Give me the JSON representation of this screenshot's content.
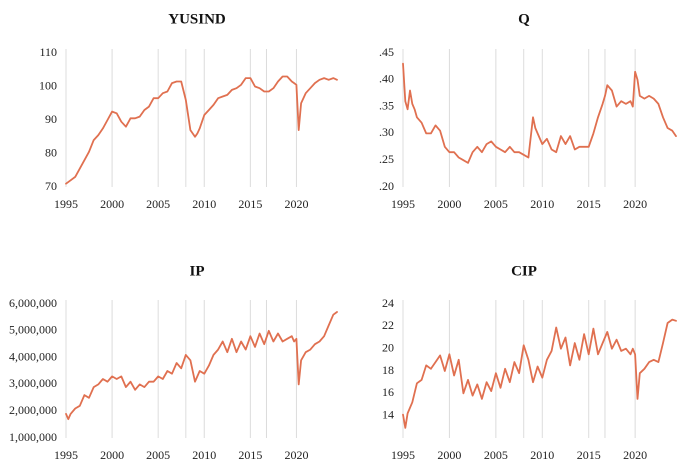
{
  "figure": {
    "line_color": "#E07050",
    "grid_color": "#dcdcdc"
  },
  "chart_data": [
    {
      "type": "line",
      "title": "YUSIND",
      "xlabel": "",
      "ylabel": "",
      "xlim": [
        1995,
        2024.4
      ],
      "ylim": [
        70,
        110
      ],
      "xticks": [
        1995,
        2000,
        2005,
        2010,
        2015,
        2020
      ],
      "xtick_labels": [
        "1995",
        "2000",
        "2005",
        "2010",
        "2015",
        "2020"
      ],
      "yticks": [
        70,
        80,
        90,
        100,
        110
      ],
      "ytick_labels": [
        "70",
        "80",
        "90",
        "100",
        "110"
      ],
      "grid": "vertical",
      "series": [
        {
          "name": "YUSIND",
          "x": [
            1995.0,
            1995.5,
            1996.0,
            1996.5,
            1997.0,
            1997.5,
            1998.0,
            1998.5,
            1999.0,
            1999.5,
            2000.0,
            2000.5,
            2001.0,
            2001.5,
            2002.0,
            2002.5,
            2003.0,
            2003.5,
            2004.0,
            2004.5,
            2005.0,
            2005.5,
            2006.0,
            2006.5,
            2007.0,
            2007.5,
            2008.0,
            2008.5,
            2009.0,
            2009.25,
            2009.5,
            2010.0,
            2010.5,
            2011.0,
            2011.5,
            2012.0,
            2012.5,
            2013.0,
            2013.5,
            2014.0,
            2014.5,
            2015.0,
            2015.5,
            2016.0,
            2016.5,
            2017.0,
            2017.5,
            2018.0,
            2018.5,
            2019.0,
            2019.5,
            2019.75,
            2020.0,
            2020.25,
            2020.5,
            2021.0,
            2021.5,
            2022.0,
            2022.5,
            2023.0,
            2023.5,
            2024.0,
            2024.4
          ],
          "values": [
            71.0,
            72.0,
            73.0,
            75.5,
            78.0,
            80.5,
            84.0,
            85.5,
            87.5,
            90.0,
            92.5,
            92.0,
            89.5,
            88.0,
            90.5,
            90.5,
            91.0,
            93.0,
            94.0,
            96.5,
            96.5,
            98.0,
            98.5,
            101.0,
            101.5,
            101.5,
            96.0,
            87.0,
            85.0,
            86.0,
            87.5,
            91.5,
            93.0,
            94.5,
            96.5,
            97.0,
            97.5,
            99.0,
            99.5,
            100.5,
            102.5,
            102.5,
            100.0,
            99.5,
            98.5,
            98.5,
            99.5,
            101.5,
            103.0,
            103.0,
            101.5,
            101.0,
            100.5,
            87.0,
            95.0,
            98.0,
            99.5,
            101.0,
            102.0,
            102.5,
            102.0,
            102.5,
            102.0
          ]
        }
      ]
    },
    {
      "type": "line",
      "title": "Q",
      "xlabel": "",
      "ylabel": "",
      "xlim": [
        1995,
        2024.4
      ],
      "ylim": [
        0.2,
        0.45
      ],
      "xticks": [
        1995,
        2000,
        2005,
        2010,
        2015,
        2020
      ],
      "xtick_labels": [
        "1995",
        "2000",
        "2005",
        "2010",
        "2015",
        "2020"
      ],
      "yticks": [
        0.2,
        0.25,
        0.3,
        0.35,
        0.4,
        0.45
      ],
      "ytick_labels": [
        ".20",
        ".25",
        ".30",
        ".35",
        ".40",
        ".45"
      ],
      "grid": "vertical",
      "series": [
        {
          "name": "Q",
          "x": [
            1995.0,
            1995.25,
            1995.5,
            1995.75,
            1996.0,
            1996.25,
            1996.5,
            1997.0,
            1997.5,
            1998.0,
            1998.5,
            1999.0,
            1999.5,
            2000.0,
            2000.5,
            2001.0,
            2001.5,
            2002.0,
            2002.5,
            2003.0,
            2003.5,
            2004.0,
            2004.5,
            2005.0,
            2005.5,
            2006.0,
            2006.5,
            2007.0,
            2007.5,
            2008.0,
            2008.5,
            2009.0,
            2009.25,
            2009.5,
            2010.0,
            2010.5,
            2011.0,
            2011.5,
            2012.0,
            2012.5,
            2013.0,
            2013.5,
            2014.0,
            2014.5,
            2015.0,
            2015.5,
            2016.0,
            2016.5,
            2016.75,
            2017.0,
            2017.5,
            2018.0,
            2018.5,
            2019.0,
            2019.5,
            2019.75,
            2020.0,
            2020.25,
            2020.5,
            2021.0,
            2021.5,
            2022.0,
            2022.5,
            2023.0,
            2023.5,
            2024.0,
            2024.4
          ],
          "values": [
            0.43,
            0.36,
            0.345,
            0.38,
            0.355,
            0.345,
            0.33,
            0.32,
            0.3,
            0.3,
            0.315,
            0.305,
            0.275,
            0.265,
            0.265,
            0.255,
            0.25,
            0.245,
            0.265,
            0.275,
            0.265,
            0.28,
            0.285,
            0.275,
            0.27,
            0.265,
            0.275,
            0.265,
            0.265,
            0.26,
            0.255,
            0.33,
            0.31,
            0.3,
            0.28,
            0.29,
            0.27,
            0.265,
            0.295,
            0.28,
            0.295,
            0.27,
            0.275,
            0.275,
            0.275,
            0.3,
            0.33,
            0.355,
            0.37,
            0.39,
            0.38,
            0.35,
            0.36,
            0.355,
            0.36,
            0.35,
            0.415,
            0.4,
            0.37,
            0.365,
            0.37,
            0.365,
            0.355,
            0.33,
            0.31,
            0.305,
            0.295
          ]
        }
      ]
    },
    {
      "type": "line",
      "title": "IP",
      "xlabel": "",
      "ylabel": "",
      "xlim": [
        1995,
        2024.4
      ],
      "ylim": [
        1000000,
        6000000
      ],
      "xticks": [
        1995,
        2000,
        2005,
        2010,
        2015,
        2020
      ],
      "xtick_labels": [
        "1995",
        "2000",
        "2005",
        "2010",
        "2015",
        "2020"
      ],
      "yticks": [
        1000000,
        2000000,
        3000000,
        4000000,
        5000000,
        6000000
      ],
      "ytick_labels": [
        "1,000,000",
        "2,000,000",
        "3,000,000",
        "4,000,000",
        "5,000,000",
        "6,000,000"
      ],
      "grid": "vertical",
      "series": [
        {
          "name": "IP",
          "x": [
            1995.0,
            1995.25,
            1995.5,
            1996.0,
            1996.5,
            1997.0,
            1997.5,
            1998.0,
            1998.5,
            1999.0,
            1999.5,
            2000.0,
            2000.5,
            2001.0,
            2001.5,
            2002.0,
            2002.5,
            2003.0,
            2003.5,
            2004.0,
            2004.5,
            2005.0,
            2005.5,
            2006.0,
            2006.5,
            2007.0,
            2007.5,
            2008.0,
            2008.5,
            2009.0,
            2009.5,
            2010.0,
            2010.5,
            2011.0,
            2011.5,
            2012.0,
            2012.5,
            2013.0,
            2013.5,
            2014.0,
            2014.5,
            2015.0,
            2015.5,
            2016.0,
            2016.5,
            2017.0,
            2017.5,
            2018.0,
            2018.5,
            2019.0,
            2019.5,
            2019.75,
            2020.0,
            2020.25,
            2020.5,
            2021.0,
            2021.5,
            2022.0,
            2022.5,
            2023.0,
            2023.5,
            2024.0,
            2024.4
          ],
          "values": [
            1900000,
            1700000,
            1900000,
            2100000,
            2200000,
            2600000,
            2500000,
            2900000,
            3000000,
            3200000,
            3100000,
            3300000,
            3200000,
            3300000,
            2900000,
            3100000,
            2800000,
            3000000,
            2900000,
            3100000,
            3100000,
            3300000,
            3200000,
            3500000,
            3400000,
            3800000,
            3600000,
            4100000,
            3900000,
            3100000,
            3500000,
            3400000,
            3700000,
            4100000,
            4300000,
            4600000,
            4200000,
            4700000,
            4200000,
            4600000,
            4300000,
            4800000,
            4400000,
            4900000,
            4500000,
            5000000,
            4600000,
            4900000,
            4600000,
            4700000,
            4800000,
            4600000,
            4700000,
            3000000,
            3900000,
            4200000,
            4300000,
            4500000,
            4600000,
            4800000,
            5200000,
            5600000,
            5700000
          ]
        }
      ]
    },
    {
      "type": "line",
      "title": "CIP",
      "xlabel": "",
      "ylabel": "",
      "xlim": [
        1995,
        2024.4
      ],
      "ylim": [
        12,
        24
      ],
      "xticks": [
        1995,
        2000,
        2005,
        2010,
        2015,
        2020
      ],
      "xtick_labels": [
        "1995",
        "2000",
        "2005",
        "2010",
        "2015",
        "2020"
      ],
      "yticks": [
        12,
        14,
        16,
        18,
        20,
        22,
        24
      ],
      "ytick_labels": [
        "",
        "14",
        "16",
        "18",
        "20",
        "22",
        "24"
      ],
      "grid": "vertical",
      "series": [
        {
          "name": "CIP",
          "x": [
            1995.0,
            1995.25,
            1995.5,
            1996.0,
            1996.5,
            1997.0,
            1997.5,
            1998.0,
            1998.5,
            1999.0,
            1999.5,
            2000.0,
            2000.5,
            2001.0,
            2001.5,
            2002.0,
            2002.5,
            2003.0,
            2003.5,
            2004.0,
            2004.5,
            2005.0,
            2005.5,
            2006.0,
            2006.5,
            2007.0,
            2007.5,
            2008.0,
            2008.5,
            2009.0,
            2009.5,
            2010.0,
            2010.5,
            2011.0,
            2011.5,
            2012.0,
            2012.5,
            2013.0,
            2013.5,
            2014.0,
            2014.5,
            2015.0,
            2015.5,
            2016.0,
            2016.5,
            2017.0,
            2017.5,
            2018.0,
            2018.5,
            2019.0,
            2019.5,
            2019.75,
            2020.0,
            2020.25,
            2020.5,
            2021.0,
            2021.5,
            2022.0,
            2022.5,
            2023.0,
            2023.5,
            2024.0,
            2024.4
          ],
          "values": [
            14.1,
            12.9,
            14.2,
            15.2,
            16.9,
            17.2,
            18.5,
            18.2,
            18.8,
            19.4,
            18.0,
            19.5,
            17.6,
            19.0,
            16.0,
            17.2,
            15.8,
            16.8,
            15.5,
            17.0,
            16.2,
            17.8,
            16.5,
            18.2,
            17.0,
            18.8,
            17.8,
            20.3,
            19.0,
            17.0,
            18.4,
            17.4,
            19.0,
            19.8,
            21.9,
            20.0,
            21.0,
            18.5,
            20.5,
            19.0,
            21.3,
            19.5,
            21.8,
            19.5,
            20.5,
            21.5,
            20.0,
            20.8,
            19.8,
            20.0,
            19.5,
            20.0,
            19.5,
            15.5,
            17.8,
            18.2,
            18.8,
            19.0,
            18.8,
            20.5,
            22.3,
            22.6,
            22.5
          ]
        }
      ]
    }
  ]
}
